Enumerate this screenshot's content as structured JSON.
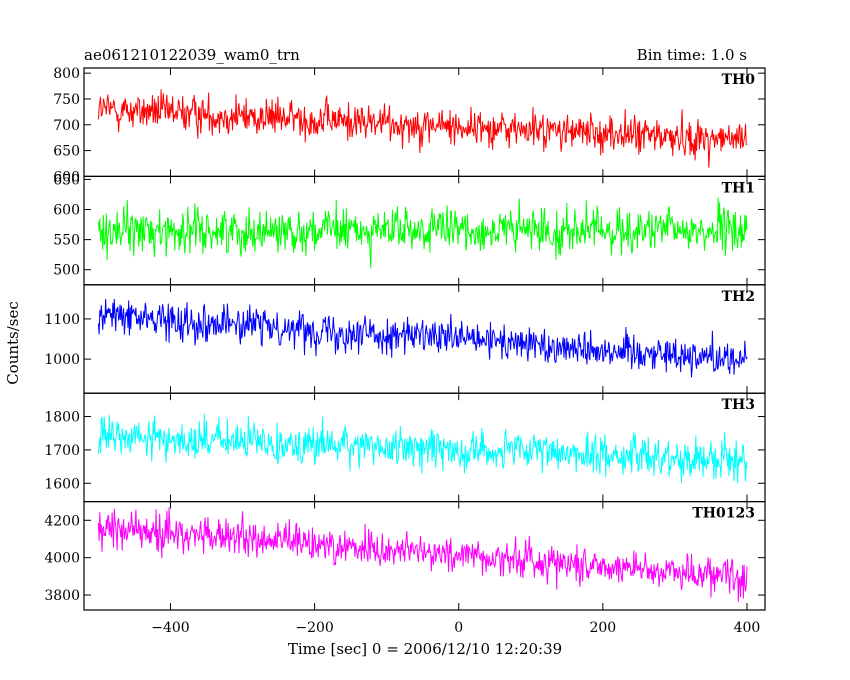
{
  "header": {
    "left": "ae061210122039_wam0_trn",
    "right": "Bin time: 1.0 s"
  },
  "chart_data": {
    "type": "line",
    "title": "ae061210122039_wam0_trn",
    "subtitle": "Bin time: 1.0 s",
    "xlabel": "Time [sec] 0 = 2006/12/10 12:20:39",
    "ylabel": "Counts/sec",
    "xlim": [
      -520,
      425
    ],
    "x_ticks": [
      -400,
      -200,
      0,
      200,
      400
    ],
    "x_tick_labels": [
      "−400",
      "−200",
      "0",
      "200",
      "400"
    ],
    "x_data_range": [
      -500,
      400
    ],
    "grid": false,
    "panels": [
      {
        "name": "TH0",
        "color": "#ff0000",
        "ylim": [
          600,
          810
        ],
        "yticks": [
          600,
          650,
          700,
          750,
          800
        ],
        "ytick_labels": [
          "600",
          "650",
          "700",
          "750",
          "800"
        ],
        "trend_start": 730,
        "trend_end": 670,
        "noise": 26
      },
      {
        "name": "TH1",
        "color": "#00ff00",
        "ylim": [
          475,
          655
        ],
        "yticks": [
          500,
          550,
          600,
          650
        ],
        "ytick_labels": [
          "500",
          "550",
          "600",
          "650"
        ],
        "trend_start": 565,
        "trend_end": 565,
        "noise": 26
      },
      {
        "name": "TH2",
        "color": "#0000ff",
        "ylim": [
          915,
          1185
        ],
        "yticks": [
          1000,
          1100
        ],
        "ytick_labels": [
          "1000",
          "1100"
        ],
        "trend_start": 1110,
        "trend_end": 1000,
        "noise": 32
      },
      {
        "name": "TH3",
        "color": "#00ffff",
        "ylim": [
          1545,
          1870
        ],
        "yticks": [
          1600,
          1700,
          1800
        ],
        "ytick_labels": [
          "1600",
          "1700",
          "1800"
        ],
        "trend_start": 1740,
        "trend_end": 1670,
        "noise": 42
      },
      {
        "name": "TH0123",
        "color": "#ff00ff",
        "ylim": [
          3720,
          4300
        ],
        "yticks": [
          3800,
          4000,
          4200
        ],
        "ytick_labels": [
          "3800",
          "4000",
          "4200"
        ],
        "trend_start": 4160,
        "trend_end": 3900,
        "noise": 70
      }
    ]
  }
}
